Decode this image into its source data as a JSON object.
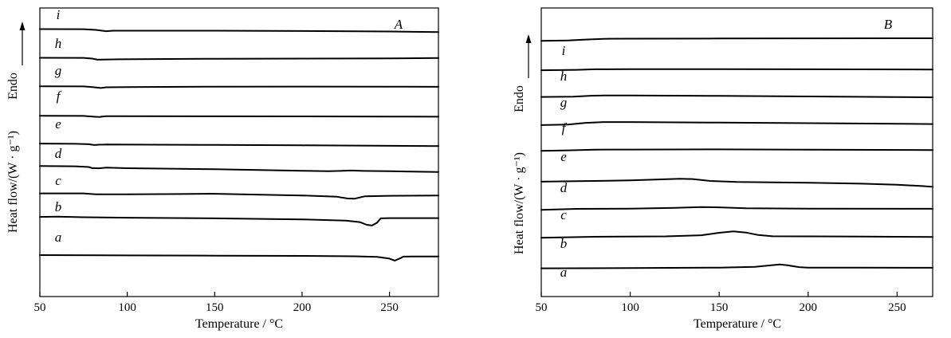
{
  "chart_data": [
    {
      "type": "line",
      "panel": "A",
      "xlabel": "Temperature / °C",
      "ylabel": "Heat flow/(W · g⁻¹)",
      "y_arrow_label": "Endo",
      "xlim": [
        50,
        278
      ],
      "x_ticks": [
        "50",
        "100",
        "150",
        "200",
        "250"
      ],
      "y_tick_labels": "none",
      "grid": false,
      "series": [
        {
          "name": "a",
          "points": [
            [
              50,
              1.6
            ],
            [
              100,
              1.0
            ],
            [
              150,
              0.5
            ],
            [
              200,
              0
            ],
            [
              230,
              -0.8
            ],
            [
              243,
              -2.0
            ],
            [
              250,
              -5.5
            ],
            [
              253,
              -9.5
            ],
            [
              256,
              -5.0
            ],
            [
              258,
              -1.5
            ],
            [
              263,
              -1.2
            ],
            [
              278,
              -1.2
            ]
          ]
        },
        {
          "name": "b",
          "points": [
            [
              50,
              1.5
            ],
            [
              60,
              2.0
            ],
            [
              75,
              0.8
            ],
            [
              100,
              -0.2
            ],
            [
              150,
              -1.5
            ],
            [
              200,
              -3.5
            ],
            [
              225,
              -6.0
            ],
            [
              233,
              -9.0
            ],
            [
              237,
              -14.5
            ],
            [
              240,
              -16.0
            ],
            [
              243,
              -10.0
            ],
            [
              245,
              -1.5
            ],
            [
              250,
              -1.0
            ],
            [
              278,
              -1.0
            ]
          ]
        },
        {
          "name": "c",
          "points": [
            [
              50,
              2.2
            ],
            [
              75,
              2.3
            ],
            [
              82,
              0.5
            ],
            [
              100,
              0.5
            ],
            [
              130,
              1.0
            ],
            [
              148,
              1.6
            ],
            [
              165,
              0.5
            ],
            [
              200,
              -2.0
            ],
            [
              220,
              -4.5
            ],
            [
              226,
              -8.0
            ],
            [
              230,
              -8.5
            ],
            [
              233,
              -6.0
            ],
            [
              236,
              -3.5
            ],
            [
              250,
              -2.5
            ],
            [
              278,
              -2.0
            ]
          ]
        },
        {
          "name": "d",
          "points": [
            [
              50,
              6.0
            ],
            [
              70,
              5.5
            ],
            [
              78,
              4.0
            ],
            [
              80,
              1.8
            ],
            [
              84,
              1.5
            ],
            [
              88,
              2.8
            ],
            [
              100,
              1.6
            ],
            [
              150,
              -0.5
            ],
            [
              200,
              -3.5
            ],
            [
              215,
              -4.5
            ],
            [
              222,
              -3.8
            ],
            [
              228,
              -3.0
            ],
            [
              235,
              -3.8
            ],
            [
              250,
              -4.5
            ],
            [
              278,
              -6.0
            ]
          ]
        },
        {
          "name": "e",
          "points": [
            [
              50,
              3.0
            ],
            [
              70,
              2.5
            ],
            [
              78,
              1.8
            ],
            [
              81,
              0.2
            ],
            [
              84,
              0.8
            ],
            [
              88,
              1.2
            ],
            [
              100,
              1.0
            ],
            [
              150,
              0.3
            ],
            [
              200,
              -0.5
            ],
            [
              250,
              -1.5
            ],
            [
              278,
              -2.0
            ]
          ]
        },
        {
          "name": "f",
          "points": [
            [
              50,
              1.2
            ],
            [
              75,
              1.0
            ],
            [
              80,
              -0.3
            ],
            [
              84,
              -1.2
            ],
            [
              88,
              0.5
            ],
            [
              95,
              0.4
            ],
            [
              150,
              0.2
            ],
            [
              200,
              0
            ],
            [
              250,
              -0.3
            ],
            [
              278,
              -0.6
            ]
          ]
        },
        {
          "name": "g",
          "points": [
            [
              50,
              1.2
            ],
            [
              75,
              1.0
            ],
            [
              80,
              -0.5
            ],
            [
              85,
              -2.2
            ],
            [
              88,
              -0.8
            ],
            [
              100,
              -0.3
            ],
            [
              150,
              0.5
            ],
            [
              200,
              0.7
            ],
            [
              250,
              0.5
            ],
            [
              278,
              0.1
            ]
          ]
        },
        {
          "name": "h",
          "points": [
            [
              50,
              2.5
            ],
            [
              75,
              2.2
            ],
            [
              80,
              0.8
            ],
            [
              83,
              -1.5
            ],
            [
              86,
              -1.2
            ],
            [
              95,
              -0.6
            ],
            [
              150,
              0.5
            ],
            [
              200,
              0.8
            ],
            [
              250,
              1.3
            ],
            [
              278,
              2.0
            ]
          ]
        },
        {
          "name": "i",
          "points": [
            [
              50,
              2.5
            ],
            [
              75,
              2.3
            ],
            [
              82,
              0.8
            ],
            [
              88,
              -1.8
            ],
            [
              92,
              -0.8
            ],
            [
              150,
              -0.8
            ],
            [
              200,
              -1.5
            ],
            [
              250,
              -2.5
            ],
            [
              278,
              -3.5
            ]
          ]
        }
      ],
      "curve_labels": [
        "a",
        "b",
        "c",
        "d",
        "e",
        "f",
        "g",
        "h",
        "i"
      ]
    },
    {
      "type": "line",
      "panel": "B",
      "xlabel": "Temperature / °C",
      "ylabel": "Heat flow/(W · g⁻¹)",
      "y_arrow_label": "Endo",
      "xlim": [
        50,
        270
      ],
      "x_ticks": [
        "50",
        "100",
        "150",
        "200",
        "250"
      ],
      "y_tick_labels": "none",
      "grid": false,
      "series": [
        {
          "name": "a",
          "points": [
            [
              50,
              -1.0
            ],
            [
              100,
              -0.5
            ],
            [
              150,
              0.5
            ],
            [
              170,
              2.0
            ],
            [
              180,
              5.5
            ],
            [
              184,
              7.0
            ],
            [
              188,
              5.5
            ],
            [
              195,
              1.5
            ],
            [
              200,
              0.5
            ],
            [
              230,
              0.3
            ],
            [
              270,
              0.2
            ]
          ]
        },
        {
          "name": "b",
          "points": [
            [
              50,
              -2.0
            ],
            [
              80,
              0
            ],
            [
              120,
              0.8
            ],
            [
              140,
              3.0
            ],
            [
              150,
              8.0
            ],
            [
              158,
              11.0
            ],
            [
              165,
              8.5
            ],
            [
              172,
              3.5
            ],
            [
              180,
              1.0
            ],
            [
              200,
              0.8
            ],
            [
              230,
              0.3
            ],
            [
              270,
              -0.5
            ]
          ]
        },
        {
          "name": "c",
          "points": [
            [
              50,
              -2.0
            ],
            [
              70,
              0
            ],
            [
              100,
              0.5
            ],
            [
              125,
              2.0
            ],
            [
              140,
              3.5
            ],
            [
              150,
              3.0
            ],
            [
              165,
              1.2
            ],
            [
              200,
              0.5
            ],
            [
              270,
              0.2
            ]
          ]
        },
        {
          "name": "d",
          "points": [
            [
              50,
              -1.5
            ],
            [
              70,
              -0.5
            ],
            [
              100,
              1.2
            ],
            [
              128,
              4.5
            ],
            [
              135,
              3.8
            ],
            [
              145,
              0
            ],
            [
              160,
              -2.0
            ],
            [
              200,
              -3.5
            ],
            [
              230,
              -5.5
            ],
            [
              250,
              -7.5
            ],
            [
              265,
              -10.5
            ],
            [
              270,
              -12.0
            ]
          ]
        },
        {
          "name": "e",
          "points": [
            [
              50,
              -2.0
            ],
            [
              65,
              -1.0
            ],
            [
              80,
              0.5
            ],
            [
              100,
              0.7
            ],
            [
              150,
              1.0
            ],
            [
              200,
              0.5
            ],
            [
              270,
              -0.3
            ]
          ]
        },
        {
          "name": "f",
          "points": [
            [
              50,
              -3.0
            ],
            [
              65,
              -2.0
            ],
            [
              75,
              1.5
            ],
            [
              85,
              3.0
            ],
            [
              100,
              3.0
            ],
            [
              150,
              2.0
            ],
            [
              200,
              0.8
            ],
            [
              250,
              -0.5
            ],
            [
              270,
              -1.0
            ]
          ]
        },
        {
          "name": "g",
          "points": [
            [
              50,
              -1.0
            ],
            [
              68,
              -0.5
            ],
            [
              78,
              1.5
            ],
            [
              85,
              2.0
            ],
            [
              100,
              2.0
            ],
            [
              150,
              1.2
            ],
            [
              200,
              0
            ],
            [
              270,
              -1.8
            ]
          ]
        },
        {
          "name": "h",
          "points": [
            [
              50,
              -1.8
            ],
            [
              70,
              -1.0
            ],
            [
              80,
              0.2
            ],
            [
              100,
              0.5
            ],
            [
              150,
              0.4
            ],
            [
              200,
              0.2
            ],
            [
              270,
              -0.3
            ]
          ]
        },
        {
          "name": "i",
          "points": [
            [
              50,
              -3.5
            ],
            [
              65,
              -2.8
            ],
            [
              75,
              -1.0
            ],
            [
              85,
              0.5
            ],
            [
              100,
              0.8
            ],
            [
              150,
              1.2
            ],
            [
              200,
              1.5
            ],
            [
              250,
              1.6
            ],
            [
              270,
              1.6
            ]
          ]
        }
      ],
      "curve_labels": [
        "a",
        "b",
        "c",
        "d",
        "e",
        "f",
        "g",
        "h",
        "i"
      ]
    }
  ]
}
